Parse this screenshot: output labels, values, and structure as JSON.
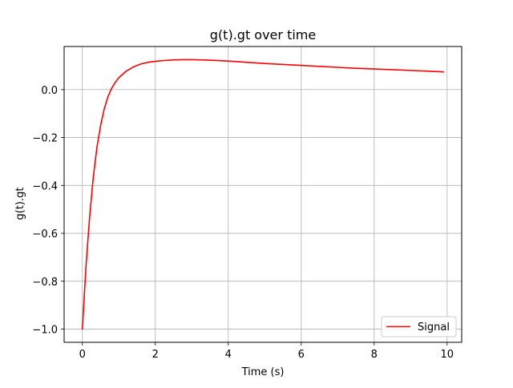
{
  "chart_data": {
    "type": "line",
    "title": "g(t).gt over time",
    "xlabel": "Time (s)",
    "ylabel": "g(t).gt",
    "xlim": [
      -0.5,
      10.4
    ],
    "ylim": [
      -1.055,
      0.18
    ],
    "xticks": [
      0,
      2,
      4,
      6,
      8,
      10
    ],
    "xtick_labels": [
      "0",
      "2",
      "4",
      "6",
      "8",
      "10"
    ],
    "yticks": [
      -1.0,
      -0.8,
      -0.6,
      -0.4,
      -0.2,
      0.0
    ],
    "ytick_labels": [
      "−1.0",
      "−0.8",
      "−0.6",
      "−0.4",
      "−0.2",
      "0.0"
    ],
    "grid": true,
    "legend": "lower right",
    "series": [
      {
        "name": "Signal",
        "color": "#ff0000",
        "x": [
          0,
          0.1,
          0.2,
          0.3,
          0.4,
          0.5,
          0.6,
          0.7,
          0.8,
          0.9,
          1.0,
          1.2,
          1.4,
          1.6,
          1.8,
          2.0,
          2.2,
          2.5,
          2.8,
          3.0,
          3.5,
          4.0,
          4.5,
          5.0,
          5.5,
          6.0,
          6.5,
          7.0,
          7.5,
          8.0,
          8.5,
          9.0,
          9.5,
          9.9
        ],
        "values": [
          -1.0,
          -0.735,
          -0.53,
          -0.365,
          -0.24,
          -0.15,
          -0.08,
          -0.03,
          0.005,
          0.03,
          0.05,
          0.077,
          0.095,
          0.107,
          0.114,
          0.118,
          0.121,
          0.124,
          0.125,
          0.125,
          0.123,
          0.119,
          0.114,
          0.109,
          0.105,
          0.101,
          0.097,
          0.093,
          0.089,
          0.086,
          0.083,
          0.08,
          0.077,
          0.074
        ]
      }
    ]
  }
}
